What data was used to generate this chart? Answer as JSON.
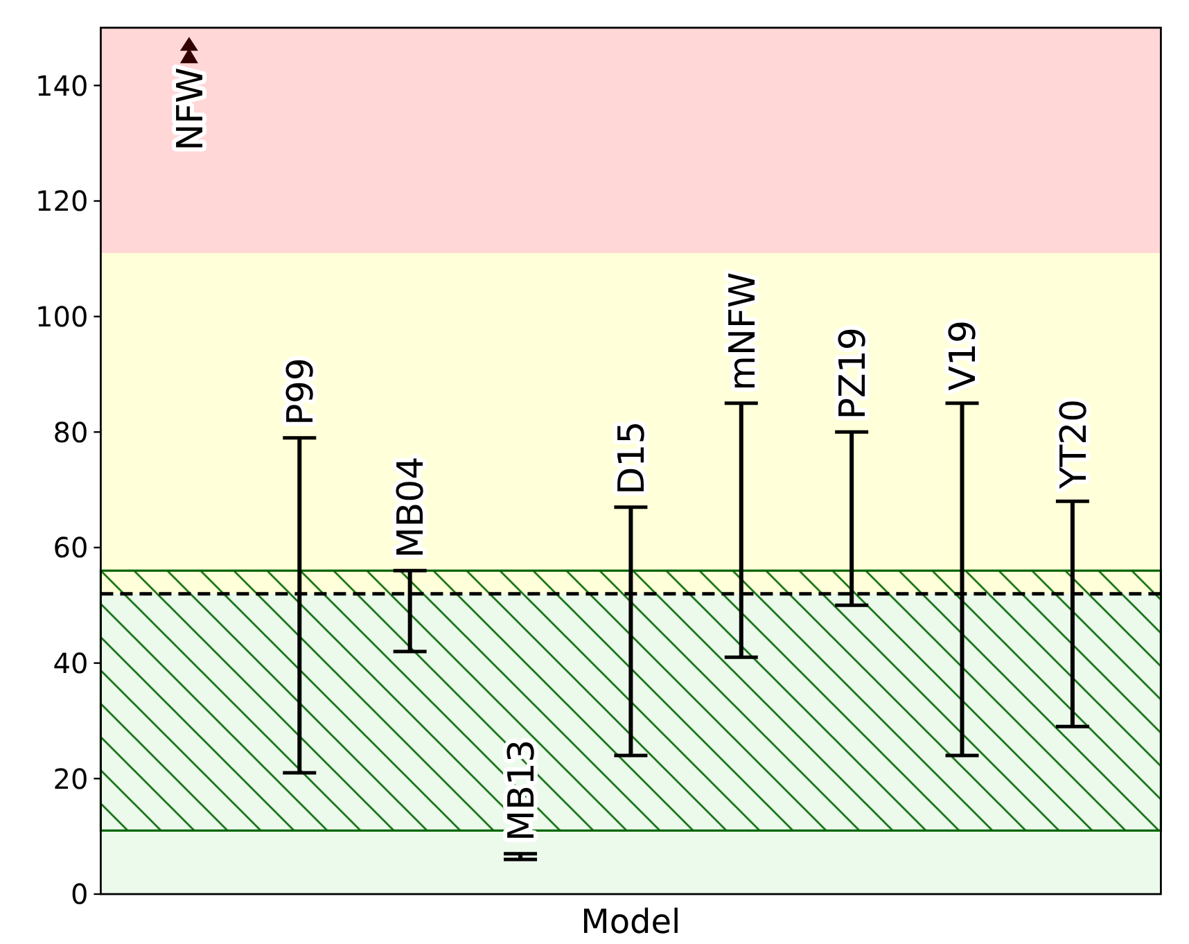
{
  "chart_data": {
    "type": "bar",
    "xlabel": "Model",
    "categories": [
      "NFW",
      "P99",
      "MB04",
      "MB13",
      "D15",
      "mNFW",
      "PZ19",
      "V19",
      "YT20"
    ],
    "series": [
      {
        "color": "#000000",
        "base": [
          null,
          21,
          42,
          6,
          24,
          41,
          50,
          24,
          29
        ],
        "values": [
          null,
          58,
          14,
          1,
          43,
          44,
          30,
          61,
          39
        ]
      },
      {
        "type": "scatter",
        "x": [
          "NFW"
        ],
        "values": [
          146
        ],
        "color": "#330000",
        "marker": "triangle"
      }
    ],
    "ylim": [
      0,
      150
    ],
    "yticks": [
      0,
      20,
      40,
      60,
      80,
      100,
      120,
      140
    ],
    "tick_labels": "y",
    "bands": [
      {
        "axis": "y",
        "from": 111,
        "to": 150,
        "color": "#ffd7d7"
      },
      {
        "axis": "y",
        "from": 52,
        "to": 111,
        "color": "#ffffd9"
      },
      {
        "axis": "y",
        "from": 0,
        "to": 52,
        "color": "#ecfaec"
      },
      {
        "axis": "y",
        "from": 11,
        "to": 56,
        "color": "#006400"
      }
    ],
    "ref_lines": [
      {
        "axis": "y",
        "value": 52,
        "color": "#000000",
        "line_style": "dashed"
      }
    ]
  }
}
